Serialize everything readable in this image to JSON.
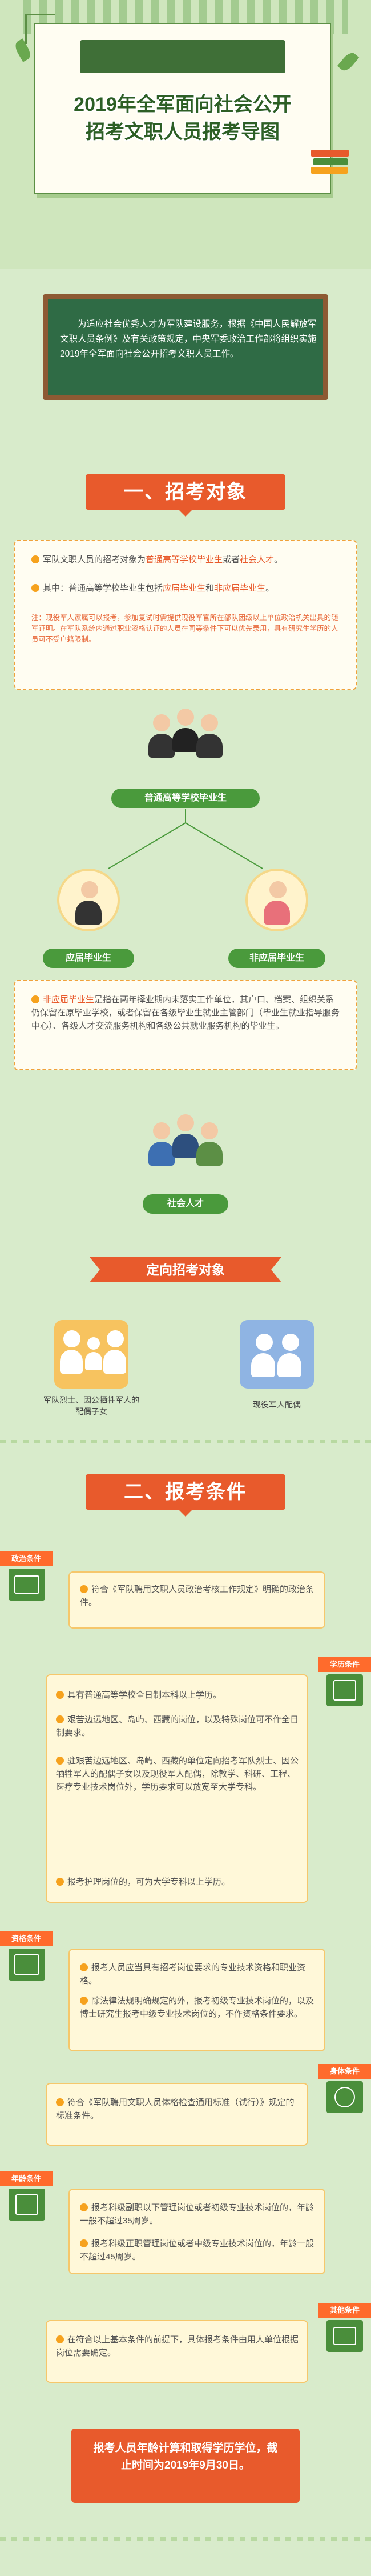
{
  "hero": {
    "title_line1": "2019年全军面向社会公开",
    "title_line2": "招考文职人员报考导图"
  },
  "intro": {
    "text": "为适应社会优秀人才为军队建设服务，根据《中国人民解放军文职人员条例》及有关政策规定，中央军委政治工作部将组织实施2019年全军面向社会公开招考文职人员工作。"
  },
  "section1": {
    "banner": "一、招考对象",
    "card": {
      "line1_prefix": "军队文职人员的招考对象为",
      "line1_hl": "普通高等学校毕业生",
      "line1_mid": "或者",
      "line1_hl2": "社会人才",
      "line1_end": "。",
      "line2_prefix": "其中：普通高等学校毕业生包括",
      "line2_hl": "应届毕业生",
      "line2_mid": "和",
      "line2_hl2": "非应届毕业生",
      "line2_end": "。",
      "note": "注：现役军人家属可以报考，参加复试时需提供现役军官所在部队团级以上单位政治机关出具的随军证明。在军队系统内通过职业资格认证的人员在同等条件下可以优先录用，具有研究生学历的人员可不受户籍限制。"
    },
    "graduates_label": "普通高等学校毕业生",
    "fresh_label": "应届毕业生",
    "nonfresh_label": "非应届毕业生",
    "fresh_card": {
      "hl": "非应届毕业生",
      "text": "是指在两年择业期内未落实工作单位，其户口、档案、组织关系仍保留在原毕业学校，或者保留在各级毕业生就业主管部门（毕业生就业指导服务中心）、各级人才交流服务机构和各级公共就业服务机构的毕业生。"
    },
    "talent_label": "社会人才",
    "targeted_ribbon": "定向招考对象",
    "targeted_left": "军队烈士、因公牺牲军人的配偶子女",
    "targeted_right": "现役军人配偶"
  },
  "section2": {
    "banner": "二、报考条件",
    "political_tag": "政治条件",
    "political_text": "符合《军队聘用文职人员政治考核工作规定》明确的政治条件。",
    "education_tag": "学历条件",
    "education_items": [
      "具有普通高等学校全日制本科以上学历。",
      "艰苦边远地区、岛屿、西藏的岗位，以及特殊岗位可不作全日制要求。",
      "驻艰苦边远地区、岛屿、西藏的单位定向招考军队烈士、因公牺牲军人的配偶子女以及现役军人配偶，除教学、科研、工程、医疗专业技术岗位外，学历要求可以放宽至大学专科。",
      "报考护理岗位的，可为大学专科以上学历。"
    ],
    "qualification_tag": "资格条件",
    "qualification_items": [
      "报考人员应当具有招考岗位要求的专业技术资格和职业资格。",
      "除法律法规明确规定的外，报考初级专业技术岗位的，以及博士研究生报考中级专业技术岗位的，不作资格条件要求。"
    ],
    "physical_tag": "身体条件",
    "physical_text": "符合《军队聘用文职人员体格检查通用标准（试行）》规定的标准条件。",
    "age_tag": "年龄条件",
    "age_items": [
      "报考科级副职以下管理岗位或者初级专业技术岗位的，年龄一般不超过35周岁。",
      "报考科级正职管理岗位或者中级专业技术岗位的，年龄一般不超过45周岁。"
    ],
    "other_tag": "其他条件",
    "other_text": "在符合以上基本条件的前提下，具体报考条件由用人单位根据岗位需要确定。",
    "footer": "报考人员年龄计算和取得学历学位，截止时间为2019年9月30日。"
  }
}
